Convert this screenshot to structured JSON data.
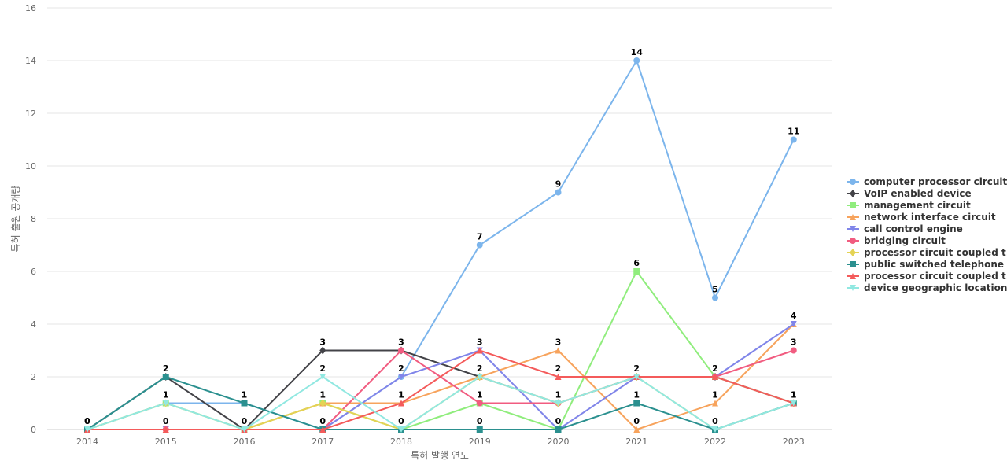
{
  "chart_data": {
    "type": "line",
    "title": "",
    "xlabel": "특허 발행 연도",
    "ylabel": "특허 출원 공개량",
    "ylim": [
      0,
      16
    ],
    "yticks": [
      0,
      2,
      4,
      6,
      8,
      10,
      12,
      14,
      16
    ],
    "categories": [
      "2014",
      "2015",
      "2016",
      "2017",
      "2018",
      "2019",
      "2020",
      "2021",
      "2022",
      "2023"
    ],
    "grid": true,
    "legend_position": "right",
    "series": [
      {
        "name": "computer processor circuit",
        "color": "#7cb5ec",
        "marker": "circle",
        "values": [
          0,
          1,
          1,
          0,
          2,
          7,
          9,
          14,
          5,
          11
        ]
      },
      {
        "name": "VoIP enabled device",
        "color": "#434348",
        "marker": "diamond",
        "values": [
          0,
          2,
          0,
          3,
          3,
          2,
          1,
          2,
          2,
          1
        ]
      },
      {
        "name": "management circuit",
        "color": "#90ed7d",
        "marker": "square",
        "values": [
          0,
          1,
          0,
          1,
          0,
          1,
          0,
          6,
          2,
          1
        ]
      },
      {
        "name": "network interface circuit",
        "color": "#f7a35c",
        "marker": "triangle",
        "values": [
          0,
          0,
          0,
          1,
          1,
          2,
          3,
          0,
          1,
          4
        ]
      },
      {
        "name": "call control engine",
        "color": "#8085e9",
        "marker": "triangle-down",
        "values": [
          0,
          0,
          0,
          0,
          2,
          3,
          0,
          2,
          2,
          4
        ]
      },
      {
        "name": "bridging circuit",
        "color": "#f15c80",
        "marker": "circle",
        "values": [
          0,
          0,
          0,
          0,
          3,
          1,
          1,
          2,
          2,
          3
        ]
      },
      {
        "name": "processor circuit coupled t...",
        "color": "#e4d354",
        "marker": "diamond",
        "values": [
          0,
          1,
          0,
          1,
          0,
          2,
          1,
          2,
          0,
          1
        ]
      },
      {
        "name": "public switched telephone",
        "color": "#2b908f",
        "marker": "square",
        "values": [
          0,
          2,
          1,
          0,
          0,
          0,
          0,
          1,
          0,
          1
        ]
      },
      {
        "name": "processor circuit coupled t...",
        "color": "#f45b5b",
        "marker": "triangle",
        "values": [
          0,
          0,
          0,
          0,
          1,
          3,
          2,
          2,
          2,
          1
        ]
      },
      {
        "name": "device geographic location",
        "color": "#91e8e1",
        "marker": "triangle-down",
        "values": [
          0,
          1,
          0,
          2,
          0,
          2,
          1,
          2,
          0,
          1
        ]
      }
    ],
    "data_labels": [
      {
        "category": "2014",
        "value": 0,
        "text": "0"
      },
      {
        "category": "2014",
        "value": 0,
        "text": "0"
      },
      {
        "category": "2015",
        "value": 2,
        "text": "2"
      },
      {
        "category": "2015",
        "value": 1,
        "text": "1"
      },
      {
        "category": "2015",
        "value": 0,
        "text": "0"
      },
      {
        "category": "2016",
        "value": 1,
        "text": "1"
      },
      {
        "category": "2016",
        "value": 0,
        "text": "0"
      },
      {
        "category": "2017",
        "value": 3,
        "text": "3"
      },
      {
        "category": "2017",
        "value": 2,
        "text": "2"
      },
      {
        "category": "2017",
        "value": 1,
        "text": "1"
      },
      {
        "category": "2017",
        "value": 0,
        "text": "0"
      },
      {
        "category": "2018",
        "value": 3,
        "text": "3"
      },
      {
        "category": "2018",
        "value": 2,
        "text": "2"
      },
      {
        "category": "2018",
        "value": 1,
        "text": "1"
      },
      {
        "category": "2018",
        "value": 0,
        "text": "0"
      },
      {
        "category": "2019",
        "value": 7,
        "text": "7"
      },
      {
        "category": "2019",
        "value": 3,
        "text": "3"
      },
      {
        "category": "2019",
        "value": 2,
        "text": "2"
      },
      {
        "category": "2019",
        "value": 1,
        "text": "1"
      },
      {
        "category": "2019",
        "value": 0,
        "text": "0"
      },
      {
        "category": "2020",
        "value": 9,
        "text": "9"
      },
      {
        "category": "2020",
        "value": 3,
        "text": "3"
      },
      {
        "category": "2020",
        "value": 2,
        "text": "2"
      },
      {
        "category": "2020",
        "value": 1,
        "text": "1"
      },
      {
        "category": "2020",
        "value": 0,
        "text": "0"
      },
      {
        "category": "2021",
        "value": 14,
        "text": "14"
      },
      {
        "category": "2021",
        "value": 6,
        "text": "6"
      },
      {
        "category": "2021",
        "value": 2,
        "text": "2"
      },
      {
        "category": "2021",
        "value": 1,
        "text": "1"
      },
      {
        "category": "2021",
        "value": 0,
        "text": "0"
      },
      {
        "category": "2022",
        "value": 5,
        "text": "5"
      },
      {
        "category": "2022",
        "value": 2,
        "text": "2"
      },
      {
        "category": "2022",
        "value": 1,
        "text": "1"
      },
      {
        "category": "2022",
        "value": 0,
        "text": "0"
      },
      {
        "category": "2023",
        "value": 11,
        "text": "11"
      },
      {
        "category": "2023",
        "value": 4,
        "text": "4"
      },
      {
        "category": "2023",
        "value": 3,
        "text": "3"
      },
      {
        "category": "2023",
        "value": 1,
        "text": "1"
      }
    ]
  }
}
